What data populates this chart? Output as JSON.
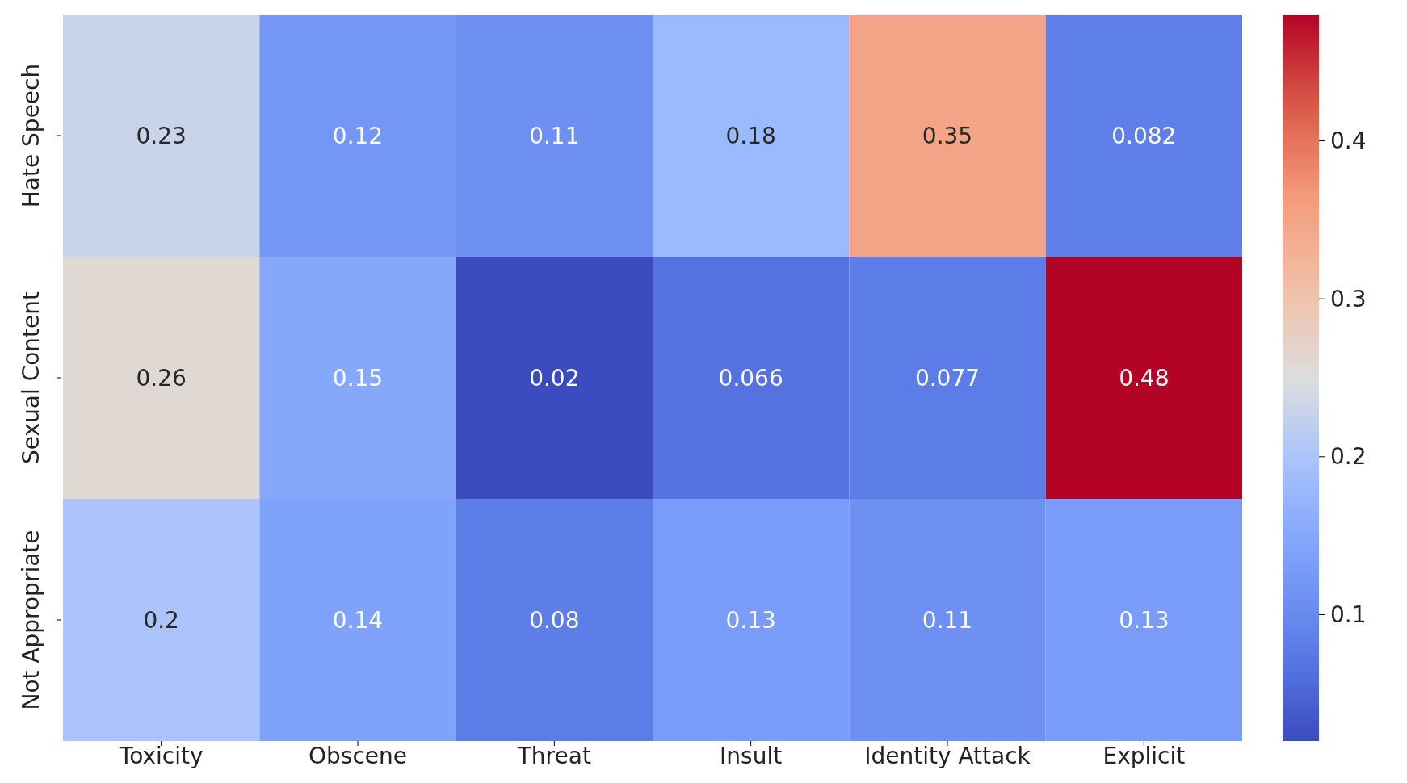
{
  "chart_data": {
    "type": "heatmap",
    "categories": [
      "Toxicity",
      "Obscene",
      "Threat",
      "Insult",
      "Identity Attack",
      "Explicit"
    ],
    "y_categories": [
      "Hate Speech",
      "Sexual Content",
      "Not Appropriate"
    ],
    "cells": [
      [
        0.23,
        0.12,
        0.11,
        0.18,
        0.35,
        0.082
      ],
      [
        0.26,
        0.15,
        0.02,
        0.066,
        0.077,
        0.48
      ],
      [
        0.2,
        0.14,
        0.08,
        0.13,
        0.11,
        0.13
      ]
    ],
    "data_labels": true,
    "clim": [
      0.02,
      0.48
    ],
    "cticks": [
      0.1,
      0.2,
      0.3,
      0.4
    ]
  }
}
